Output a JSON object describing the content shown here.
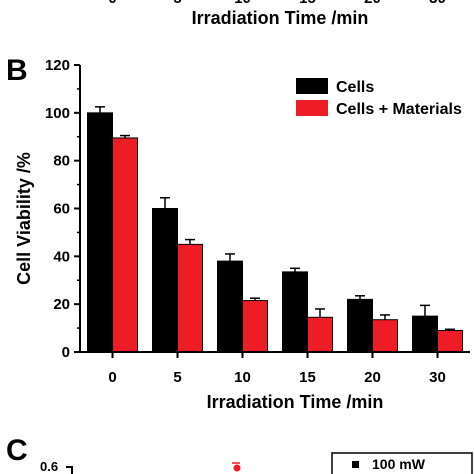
{
  "top_fragment": {
    "tick_labels": [
      "0",
      "5",
      "10",
      "15",
      "20",
      "30"
    ],
    "xlabel": "Irradiation Time  /min"
  },
  "panel_b": {
    "panel_label": "B"
  },
  "panel_c": {
    "panel_label": "C",
    "y_tick_label": "0.6",
    "legend_label": "100 mW"
  },
  "colors": {
    "cells": "#000000",
    "cells_materials": "#ee1c24"
  },
  "chart_data": {
    "type": "bar",
    "title": "",
    "xlabel": "Irradiation Time  /min",
    "ylabel": "Cell Viability  /%",
    "categories": [
      "0",
      "5",
      "10",
      "15",
      "20",
      "30"
    ],
    "ylim": [
      0,
      120
    ],
    "yticks": [
      0,
      20,
      40,
      60,
      80,
      100,
      120
    ],
    "legend_position": "top-right",
    "series": [
      {
        "name": "Cells",
        "color": "#000000",
        "values": [
          100,
          60,
          38,
          33.5,
          22,
          15
        ],
        "errors": [
          2.5,
          4.5,
          3,
          1.5,
          1.5,
          4.5
        ]
      },
      {
        "name": "Cells + Materials",
        "color": "#ee1c24",
        "values": [
          89.5,
          45,
          21.5,
          14.5,
          13.5,
          9
        ],
        "errors": [
          1,
          2,
          1,
          3.5,
          2,
          0.5
        ]
      }
    ]
  }
}
